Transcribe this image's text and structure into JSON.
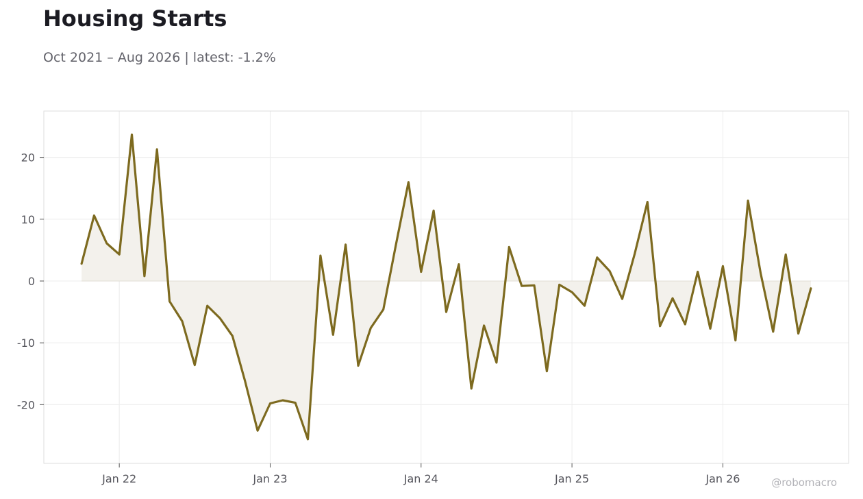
{
  "header": {
    "title": "Housing Starts",
    "subtitle": "Oct 2021 – Aug 2026 | latest: -1.2%"
  },
  "watermark": "@robomacro",
  "colors": {
    "line": "#7d6a1f",
    "fill": "#f3f1ec",
    "grid": "#ececec",
    "frame": "#dcdcdc",
    "zero": "#e0ddd4"
  },
  "chart_data": {
    "type": "line",
    "title": "Housing Starts",
    "subtitle": "Oct 2021 – Aug 2026 | latest: -1.2%",
    "xlabel": "",
    "ylabel": "",
    "x_ticks": [
      {
        "label": "Jan 22",
        "date": "2022-01"
      },
      {
        "label": "Jan 23",
        "date": "2023-01"
      },
      {
        "label": "Jan 24",
        "date": "2024-01"
      },
      {
        "label": "Jan 25",
        "date": "2025-01"
      },
      {
        "label": "Jan 26",
        "date": "2026-01"
      }
    ],
    "y_ticks": [
      -20,
      -10,
      0,
      10,
      20
    ],
    "ylim": [
      -29.5,
      27.5
    ],
    "xlim": [
      "2021-07",
      "2026-11"
    ],
    "grid": true,
    "legend": "none",
    "series": [
      {
        "x": [
          "2021-10",
          "2021-11",
          "2021-12",
          "2022-01",
          "2022-02",
          "2022-03",
          "2022-04",
          "2022-05",
          "2022-06",
          "2022-07",
          "2022-08",
          "2022-09",
          "2022-10",
          "2022-11",
          "2022-12",
          "2023-01",
          "2023-02",
          "2023-03",
          "2023-04",
          "2023-05",
          "2023-06",
          "2023-07",
          "2023-08",
          "2023-09",
          "2023-10",
          "2023-11",
          "2023-12",
          "2024-01",
          "2024-02",
          "2024-03",
          "2024-04",
          "2024-05",
          "2024-06",
          "2024-07",
          "2024-08",
          "2024-09",
          "2024-10",
          "2024-11",
          "2024-12",
          "2025-01",
          "2025-02",
          "2025-03",
          "2025-04",
          "2025-05",
          "2025-06",
          "2025-07",
          "2025-08",
          "2025-09",
          "2025-10",
          "2025-11",
          "2025-12",
          "2026-01",
          "2026-02",
          "2026-03",
          "2026-04",
          "2026-05",
          "2026-06",
          "2026-07",
          "2026-08"
        ],
        "values": [
          2.8,
          10.6,
          6.1,
          4.3,
          23.7,
          0.8,
          21.3,
          -3.3,
          -6.5,
          -13.6,
          -4.0,
          -6.0,
          -8.9,
          -16.2,
          -24.2,
          -19.8,
          -19.3,
          -19.7,
          -25.6,
          4.1,
          -8.7,
          5.9,
          -13.7,
          -7.6,
          -4.6,
          5.9,
          16.0,
          1.5,
          11.4,
          -5.0,
          2.7,
          -17.4,
          -7.2,
          -13.2,
          5.5,
          -0.8,
          -0.7,
          -14.6,
          -0.6,
          -1.8,
          -4.0,
          3.8,
          1.6,
          -2.9,
          4.5,
          12.8,
          -7.3,
          -2.8,
          -7.0,
          1.5,
          -7.7,
          2.4,
          -9.6,
          13.0,
          1.3,
          -8.2,
          4.3,
          -8.5,
          -1.2
        ]
      }
    ]
  }
}
